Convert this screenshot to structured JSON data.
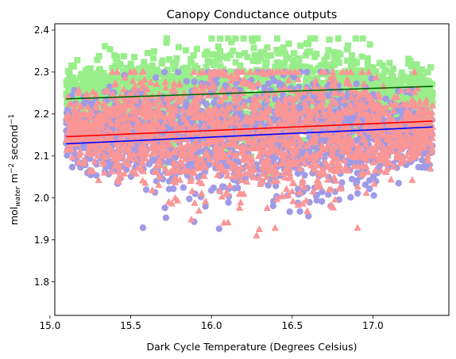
{
  "chart_data": {
    "type": "scatter",
    "title": "Canopy Conductance outputs",
    "xlabel": "Dark Cycle Temperature (Degrees Celsius)",
    "ylabel": {
      "main": "mol",
      "sub": "water",
      "middle": " m",
      "sup1": "−2",
      "tail": " second",
      "sup2": "−1"
    },
    "xlim": [
      15.03,
      17.47
    ],
    "ylim": [
      1.72,
      2.415
    ],
    "xticks": [
      15.0,
      15.5,
      16.0,
      16.5,
      17.0
    ],
    "xtick_labels": [
      "15.0",
      "15.5",
      "16.0",
      "16.5",
      "17.0"
    ],
    "yticks": [
      1.8,
      1.9,
      2.0,
      2.1,
      2.2,
      2.3,
      2.4
    ],
    "ytick_labels": [
      "1.8",
      "1.9",
      "2.0",
      "2.1",
      "2.2",
      "2.3",
      "2.4"
    ],
    "grid": false,
    "legend": "none",
    "series": [
      {
        "marker": "square",
        "color": "#98ee8a",
        "x_range": [
          15.1,
          17.37
        ],
        "y_center": 2.25,
        "y_spread": 0.06,
        "y_range": [
          2.01,
          2.38
        ]
      },
      {
        "marker": "circle",
        "color": "#a09be6",
        "x_range": [
          15.1,
          17.37
        ],
        "y_center": 2.15,
        "y_spread": 0.07,
        "y_range": [
          1.75,
          2.3
        ]
      },
      {
        "marker": "triangle",
        "color": "#fa9696",
        "x_range": [
          15.1,
          17.37
        ],
        "y_center": 2.16,
        "y_spread": 0.08,
        "y_range": [
          1.75,
          2.3
        ]
      }
    ],
    "fit_lines": [
      {
        "color": "#006400",
        "x": [
          15.1,
          17.37
        ],
        "y": [
          2.236,
          2.266
        ]
      },
      {
        "color": "#ff0000",
        "x": [
          15.1,
          17.37
        ],
        "y": [
          2.146,
          2.183
        ]
      },
      {
        "color": "#0000ff",
        "x": [
          15.1,
          17.37
        ],
        "y": [
          2.129,
          2.169
        ]
      }
    ]
  }
}
